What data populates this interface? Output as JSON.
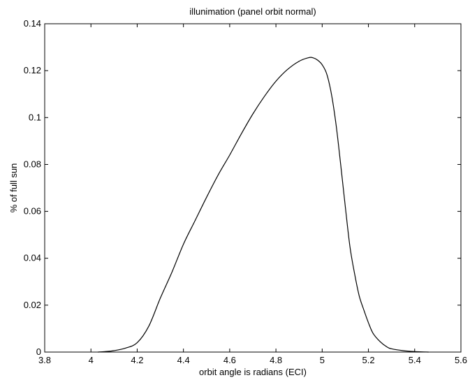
{
  "chart_data": {
    "type": "line",
    "title": "illunimation (panel orbit normal)",
    "xlabel": "orbit angle is radians (ECI)",
    "ylabel": "% of full sun",
    "xlim": [
      3.8,
      5.6
    ],
    "ylim": [
      0,
      0.14
    ],
    "x_ticks": [
      "3.8",
      "4",
      "4.2",
      "4.4",
      "4.6",
      "4.8",
      "5",
      "5.2",
      "5.4",
      "5.6"
    ],
    "y_ticks": [
      "0",
      "0.02",
      "0.04",
      "0.06",
      "0.08",
      "0.1",
      "0.12",
      "0.14"
    ],
    "grid": false,
    "series": [
      {
        "color": "#000000",
        "x": [
          4.03,
          4.06,
          4.1,
          4.15,
          4.2,
          4.25,
          4.3,
          4.35,
          4.4,
          4.45,
          4.5,
          4.55,
          4.6,
          4.65,
          4.7,
          4.75,
          4.8,
          4.85,
          4.9,
          4.94,
          4.96,
          4.98,
          5.0,
          5.02,
          5.04,
          5.06,
          5.08,
          5.1,
          5.12,
          5.14,
          5.16,
          5.18,
          5.2,
          5.22,
          5.25,
          5.28,
          5.3,
          5.35,
          5.4,
          5.43,
          5.46
        ],
        "y": [
          0.0,
          0.0002,
          0.0006,
          0.0017,
          0.004,
          0.011,
          0.023,
          0.034,
          0.046,
          0.056,
          0.066,
          0.0755,
          0.084,
          0.093,
          0.1015,
          0.109,
          0.1155,
          0.1205,
          0.124,
          0.1255,
          0.1255,
          0.1245,
          0.1225,
          0.1185,
          0.11,
          0.097,
          0.08,
          0.062,
          0.045,
          0.0335,
          0.024,
          0.018,
          0.0125,
          0.008,
          0.0045,
          0.0022,
          0.0014,
          0.0006,
          0.0002,
          0.0001,
          0.0
        ]
      }
    ]
  }
}
